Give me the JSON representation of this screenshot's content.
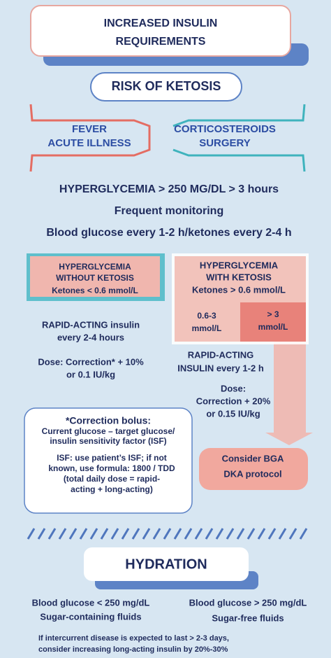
{
  "header": {
    "title": [
      "INCREASED INSULIN",
      "REQUIREMENTS"
    ]
  },
  "risk": {
    "label": "RISK OF KETOSIS",
    "left": [
      "FEVER",
      "ACUTE ILLNESS"
    ],
    "right": [
      "CORTICOSTEROIDS",
      "SURGERY"
    ]
  },
  "monitoring": [
    "HYPERGLYCEMIA > 250 MG/DL > 3 hours",
    "Frequent monitoring",
    "Blood glucose every 1-2 h/ketones every 2-4 h"
  ],
  "without_ketosis": {
    "title": [
      "HYPERGLYCEMIA",
      "WITHOUT KETOSIS"
    ],
    "ketones": "Ketones < 0.6 mmol/L",
    "treatment": [
      "RAPID-ACTING insulin",
      "every 2-4 hours"
    ],
    "dose": [
      "Dose: Correction* + 10%",
      "or 0.1 IU/kg"
    ]
  },
  "with_ketosis": {
    "title": [
      "HYPERGLYCEMIA",
      "WITH KETOSIS"
    ],
    "ketones": "Ketones > 0.6 mmol/L",
    "low": [
      "0.6-3",
      "mmol/L"
    ],
    "high": [
      "> 3",
      "mmol/L"
    ],
    "treatment": [
      "RAPID-ACTING",
      "INSULIN every 1-2 h"
    ],
    "dose": [
      "Dose:",
      "Correction + 20%",
      "or 0.15 IU/kg"
    ],
    "action": [
      "Consider BGA",
      "DKA protocol"
    ]
  },
  "correction_bolus": {
    "title": "*Correction bolus:",
    "formula": [
      "Current glucose – target glucose/",
      "insulin sensitivity factor (ISF)"
    ],
    "note": [
      "ISF: use patient’s ISF; if not",
      "known, use formula: 1800 / TDD",
      "(total daily dose = rapid-",
      "acting + long-acting)"
    ]
  },
  "hydration": {
    "title": "HYDRATION",
    "left": [
      "Blood glucose < 250 mg/dL",
      "Sugar-containing fluids"
    ],
    "right": [
      "Blood glucose > 250 mg/dL",
      "Sugar-free fluids"
    ],
    "footer": [
      "If intercurrent disease is expected to last > 2-3 days,",
      "consider increasing long-acting insulin by 20%-30%"
    ]
  }
}
